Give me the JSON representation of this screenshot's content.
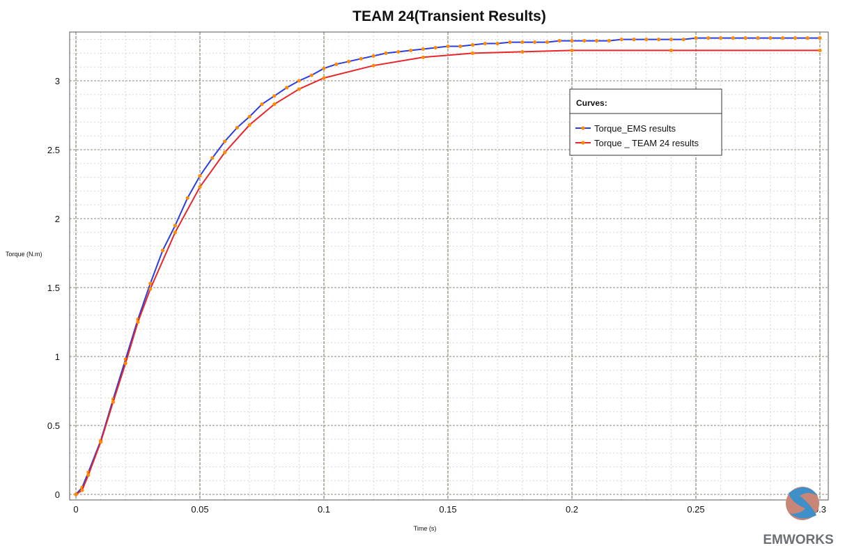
{
  "chart_data": {
    "type": "line",
    "title": "TEAM 24(Transient Results)",
    "xlabel": "Time (s)",
    "ylabel": "Torque (N.m)",
    "xlim": [
      0,
      0.3
    ],
    "ylim": [
      0,
      3.3
    ],
    "x_ticks": [
      "0",
      "0.05",
      "0.1",
      "0.15",
      "0.2",
      "0.25",
      "0.3"
    ],
    "y_ticks": [
      "0",
      "0.5",
      "1",
      "1.5",
      "2",
      "2.5",
      "3"
    ],
    "grid": true,
    "legend": {
      "title": "Curves:",
      "placement": "upper-right-inside"
    },
    "series": [
      {
        "name": "Torque_EMS results",
        "line_color": "#2b3de0",
        "marker_color": "#ff8c00",
        "x": [
          0,
          0.0025,
          0.005,
          0.01,
          0.015,
          0.02,
          0.025,
          0.03,
          0.035,
          0.04,
          0.045,
          0.05,
          0.055,
          0.06,
          0.065,
          0.07,
          0.075,
          0.08,
          0.085,
          0.09,
          0.095,
          0.1,
          0.105,
          0.11,
          0.115,
          0.12,
          0.125,
          0.13,
          0.135,
          0.14,
          0.145,
          0.15,
          0.155,
          0.16,
          0.165,
          0.17,
          0.175,
          0.18,
          0.185,
          0.19,
          0.195,
          0.2,
          0.205,
          0.21,
          0.215,
          0.22,
          0.225,
          0.23,
          0.235,
          0.24,
          0.245,
          0.25,
          0.255,
          0.26,
          0.265,
          0.27,
          0.275,
          0.28,
          0.285,
          0.29,
          0.295,
          0.3
        ],
        "y": [
          0.0,
          0.05,
          0.16,
          0.39,
          0.69,
          0.98,
          1.27,
          1.53,
          1.77,
          1.95,
          2.15,
          2.31,
          2.44,
          2.56,
          2.66,
          2.74,
          2.83,
          2.89,
          2.95,
          3.0,
          3.04,
          3.09,
          3.12,
          3.14,
          3.16,
          3.18,
          3.2,
          3.21,
          3.22,
          3.23,
          3.24,
          3.25,
          3.25,
          3.26,
          3.27,
          3.27,
          3.28,
          3.28,
          3.28,
          3.28,
          3.29,
          3.29,
          3.29,
          3.29,
          3.29,
          3.3,
          3.3,
          3.3,
          3.3,
          3.3,
          3.3,
          3.31,
          3.31,
          3.31,
          3.31,
          3.31,
          3.31,
          3.31,
          3.31,
          3.31,
          3.31,
          3.31
        ]
      },
      {
        "name": "Torque _ TEAM 24 results",
        "line_color": "#e8262a",
        "marker_color": "#ff8c00",
        "x": [
          0,
          0.0025,
          0.005,
          0.01,
          0.015,
          0.02,
          0.025,
          0.03,
          0.04,
          0.05,
          0.06,
          0.07,
          0.08,
          0.09,
          0.1,
          0.12,
          0.14,
          0.16,
          0.18,
          0.2,
          0.24,
          0.3
        ],
        "y": [
          0.0,
          0.03,
          0.14,
          0.38,
          0.67,
          0.95,
          1.25,
          1.49,
          1.9,
          2.23,
          2.48,
          2.68,
          2.83,
          2.94,
          3.02,
          3.11,
          3.17,
          3.2,
          3.21,
          3.22,
          3.22,
          3.22
        ]
      }
    ]
  },
  "logo": {
    "text": "EMWORKS"
  }
}
